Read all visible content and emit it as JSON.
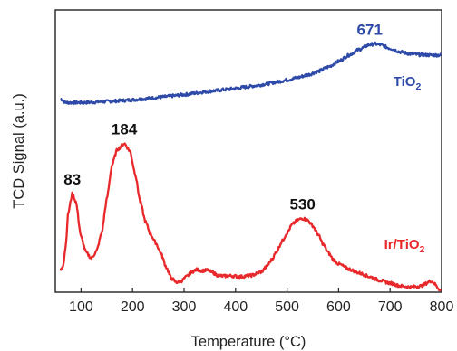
{
  "chart_data": {
    "type": "line",
    "xlabel": "Temperature (°C)",
    "ylabel": "TCD Signal (a.u.)",
    "xlim": [
      50,
      800
    ],
    "xticks": [
      100,
      200,
      300,
      400,
      500,
      600,
      700,
      800
    ],
    "ylim": [
      0,
      1
    ],
    "yticks_labeled": false,
    "grid": false,
    "series": [
      {
        "name": "TiO2",
        "name_base": "TiO",
        "name_sub": "2",
        "color": "#2e4aa8",
        "x": [
          60,
          70,
          80,
          100,
          120,
          140,
          160,
          180,
          200,
          220,
          240,
          260,
          280,
          300,
          320,
          340,
          360,
          380,
          400,
          420,
          440,
          460,
          480,
          500,
          520,
          540,
          560,
          580,
          600,
          620,
          640,
          660,
          671,
          680,
          700,
          720,
          740,
          760,
          780,
          800
        ],
        "y": [
          0.686,
          0.672,
          0.672,
          0.672,
          0.673,
          0.675,
          0.677,
          0.679,
          0.682,
          0.685,
          0.688,
          0.692,
          0.696,
          0.7,
          0.705,
          0.71,
          0.714,
          0.718,
          0.722,
          0.727,
          0.732,
          0.738,
          0.745,
          0.752,
          0.76,
          0.77,
          0.782,
          0.798,
          0.818,
          0.84,
          0.86,
          0.877,
          0.88,
          0.877,
          0.864,
          0.851,
          0.844,
          0.841,
          0.84,
          0.84
        ]
      },
      {
        "name": "Ir/TiO2",
        "name_base": "Ir/TiO",
        "name_sub": "2",
        "color": "#e8282a",
        "x": [
          60,
          65,
          70,
          75,
          83,
          90,
          100,
          110,
          120,
          130,
          140,
          150,
          160,
          170,
          184,
          195,
          205,
          215,
          225,
          235,
          245,
          255,
          265,
          275,
          285,
          295,
          305,
          315,
          325,
          335,
          345,
          355,
          365,
          375,
          390,
          410,
          430,
          450,
          460,
          470,
          480,
          490,
          500,
          510,
          520,
          530,
          540,
          550,
          560,
          570,
          580,
          590,
          600,
          620,
          640,
          660,
          680,
          700,
          720,
          740,
          760,
          780,
          800
        ],
        "y": [
          0.076,
          0.095,
          0.16,
          0.28,
          0.349,
          0.32,
          0.195,
          0.14,
          0.12,
          0.145,
          0.21,
          0.33,
          0.45,
          0.505,
          0.527,
          0.5,
          0.42,
          0.32,
          0.25,
          0.205,
          0.175,
          0.138,
          0.09,
          0.05,
          0.035,
          0.04,
          0.055,
          0.072,
          0.08,
          0.076,
          0.078,
          0.07,
          0.06,
          0.057,
          0.058,
          0.055,
          0.059,
          0.072,
          0.09,
          0.115,
          0.145,
          0.18,
          0.21,
          0.24,
          0.255,
          0.262,
          0.255,
          0.235,
          0.205,
          0.17,
          0.14,
          0.115,
          0.1,
          0.082,
          0.068,
          0.055,
          0.042,
          0.032,
          0.022,
          0.018,
          0.022,
          0.04,
          0.004
        ]
      }
    ],
    "annotations": [
      {
        "text": "671",
        "series": 0,
        "x": 671
      },
      {
        "text": "83",
        "series": 1,
        "x": 83
      },
      {
        "text": "184",
        "series": 1,
        "x": 184
      },
      {
        "text": "530",
        "series": 1,
        "x": 530
      }
    ]
  }
}
